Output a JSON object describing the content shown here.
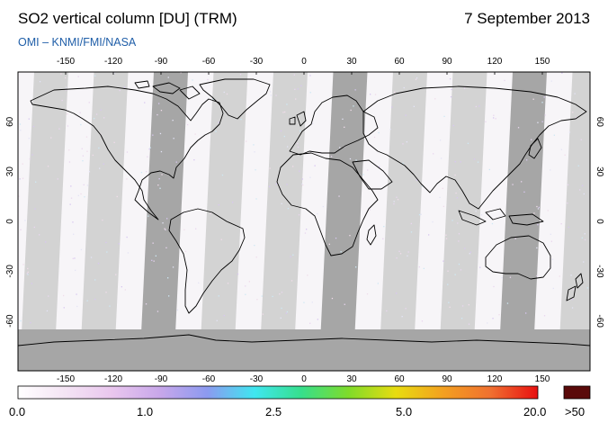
{
  "header": {
    "title": "SO2 vertical column [DU] (TRM)",
    "date": "7 September 2013",
    "credit": "OMI  –  KNMI/FMI/NASA"
  },
  "map": {
    "lon_ticks": [
      "-150",
      "-120",
      "-90",
      "-60",
      "-30",
      "0",
      "30",
      "60",
      "90",
      "120",
      "150"
    ],
    "lat_ticks": [
      "60",
      "30",
      "0",
      "-30",
      "-60"
    ],
    "swath_colors": {
      "light": "#d3d3d3",
      "dark": "#a6a6a6",
      "background": "#f7f5f8",
      "land_outline": "#000000"
    }
  },
  "colorbar": {
    "labels": [
      "0.0",
      "1.0",
      "2.5",
      "5.0",
      "20.0"
    ],
    "overflow_label": ">50",
    "overflow_color": "#5a0a0a",
    "gradient_colors": [
      "#ffffff",
      "#f4e4f4",
      "#e9c6ee",
      "#c8a7ea",
      "#8c9af0",
      "#3fe6f0",
      "#36df8c",
      "#7fdc2a",
      "#e8dc10",
      "#f3a020",
      "#f07030",
      "#e81010"
    ]
  }
}
